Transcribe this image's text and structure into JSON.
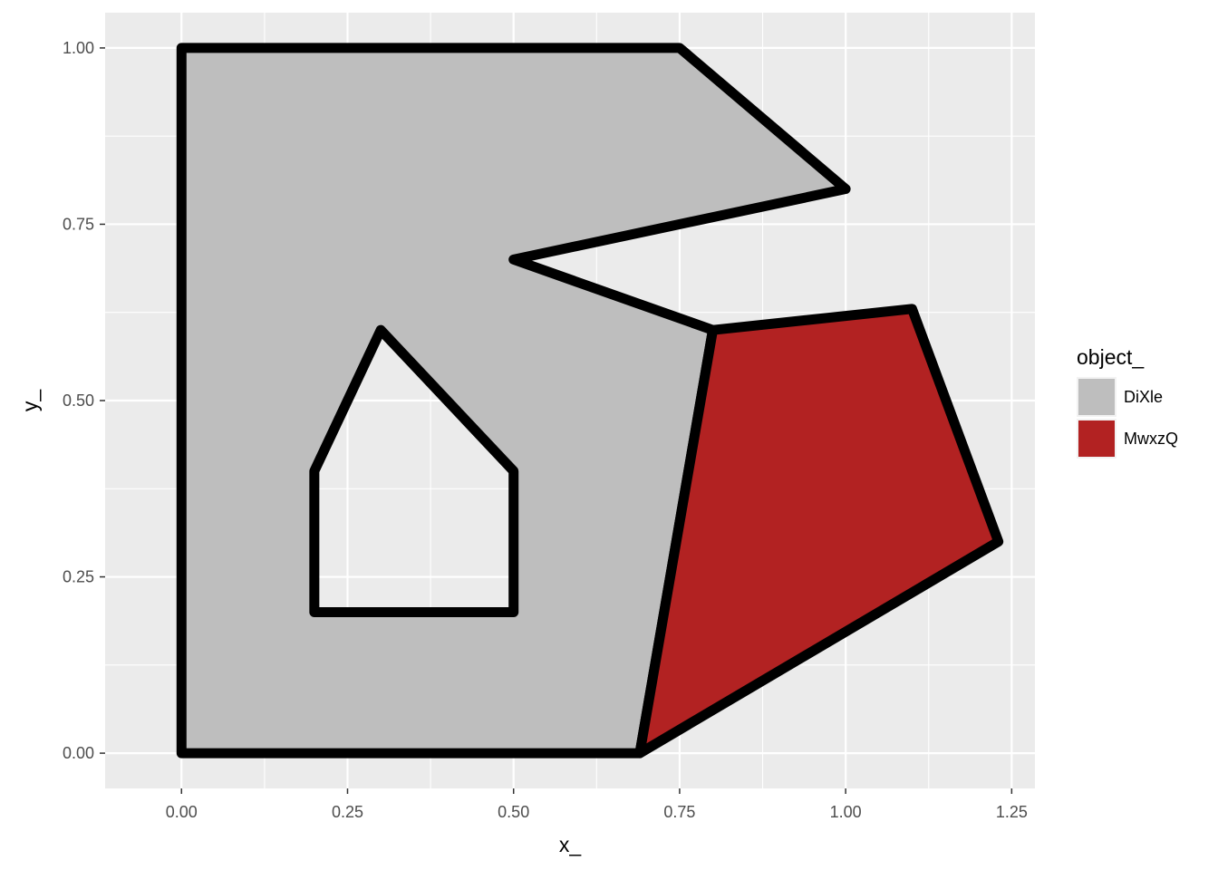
{
  "chart_data": {
    "type": "polygon",
    "xlabel": "x_",
    "ylabel": "y_",
    "xlim": [
      -0.115,
      1.285
    ],
    "ylim": [
      -0.05,
      1.05
    ],
    "x_ticks": [
      0.0,
      0.25,
      0.5,
      0.75,
      1.0,
      1.25
    ],
    "x_tick_labels": [
      "0.00",
      "0.25",
      "0.50",
      "0.75",
      "1.00",
      "1.25"
    ],
    "y_ticks": [
      0.0,
      0.25,
      0.5,
      0.75,
      1.0
    ],
    "y_tick_labels": [
      "0.00",
      "0.25",
      "0.50",
      "0.75",
      "1.00"
    ],
    "grid": true,
    "legend": {
      "title": "object_",
      "placement": "right",
      "entries": [
        {
          "label": "DiXle",
          "color": "#bebebe"
        },
        {
          "label": "MwxzQ",
          "color": "#b22222"
        }
      ]
    },
    "outline_color": "#000000",
    "series": [
      {
        "name": "DiXle",
        "fill": "#bebebe",
        "outer": [
          [
            0,
            0
          ],
          [
            0,
            1
          ],
          [
            0.75,
            1
          ],
          [
            1.0,
            0.8
          ],
          [
            0.5,
            0.7
          ],
          [
            0.8,
            0.6
          ],
          [
            0.69,
            0
          ]
        ],
        "holes": [
          [
            [
              0.2,
              0.2
            ],
            [
              0.5,
              0.2
            ],
            [
              0.5,
              0.4
            ],
            [
              0.3,
              0.6
            ],
            [
              0.2,
              0.4
            ]
          ]
        ]
      },
      {
        "name": "MwxzQ",
        "fill": "#b22222",
        "outer": [
          [
            0.69,
            0
          ],
          [
            0.8,
            0.6
          ],
          [
            1.1,
            0.63
          ],
          [
            1.23,
            0.3
          ]
        ],
        "holes": []
      }
    ]
  }
}
